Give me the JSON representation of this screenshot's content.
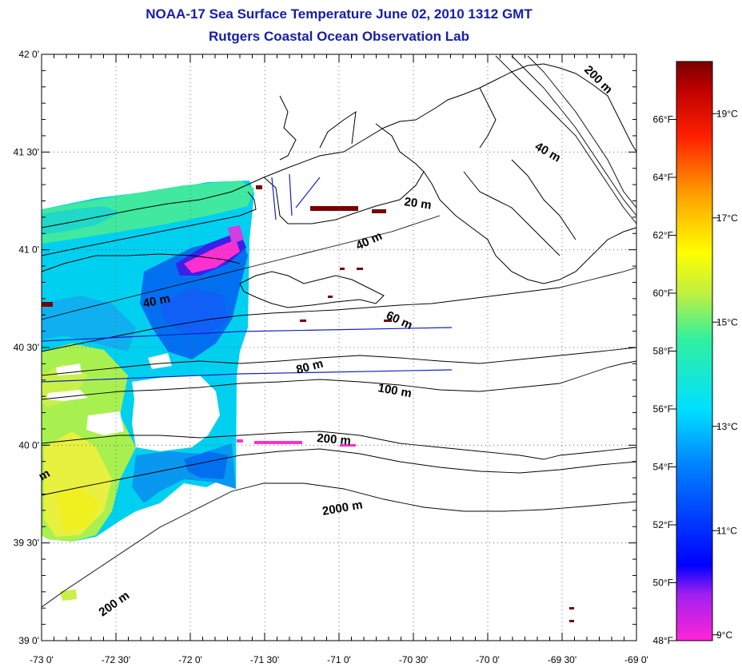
{
  "header": {
    "title": "NOAA-17 Sea Surface Temperature June 02, 2010 1312 GMT",
    "subtitle": "Rutgers Coastal Ocean Observation Lab"
  },
  "axes": {
    "lat_labels": [
      "42 0'",
      "41 30'",
      "41 0'",
      "40 30'",
      "40 0'",
      "39 30'",
      "39 0'"
    ],
    "lon_labels": [
      "-73 0'",
      "-72 30'",
      "-72 0'",
      "-71 30'",
      "-71 0'",
      "-70 30'",
      "-70 0'",
      "-69 30'",
      "-69 0'"
    ],
    "lat_range": [
      39.0,
      42.0
    ],
    "lon_range": [
      -73.0,
      -69.0
    ]
  },
  "contours": {
    "labels": [
      "20 m",
      "40 m",
      "40 m",
      "40 m",
      "60 m",
      "80 m",
      "100 m",
      "200 m",
      "200 m",
      "200 m",
      "2000 m",
      "m"
    ]
  },
  "colorbar": {
    "fahrenheit_labels": [
      "66°F",
      "64°F",
      "62°F",
      "60°F",
      "58°F",
      "56°F",
      "54°F",
      "52°F",
      "50°F",
      "48°F"
    ],
    "celsius_labels": [
      "19°C",
      "17°C",
      "15°C",
      "13°C",
      "11°C",
      "9°C"
    ],
    "range_f": [
      48,
      68
    ],
    "colors": [
      "#ff24d6",
      "#a020f0",
      "#0000ff",
      "#0080ff",
      "#00e0ff",
      "#30f0a0",
      "#c0f040",
      "#ffff00",
      "#ffa000",
      "#ff2000",
      "#c00000",
      "#780000"
    ]
  }
}
